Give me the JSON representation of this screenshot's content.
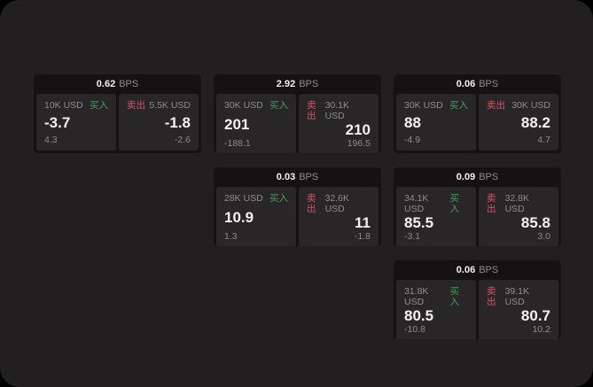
{
  "page": {
    "outer_bg": "#000000",
    "bg": "#211f20"
  },
  "colors": {
    "card_bg": "#141213",
    "panel_bg": "#282627",
    "value": "#f2f2f2",
    "muted": "#8e8c8d",
    "buy": "#41a35e",
    "sell": "#d9536e"
  },
  "labels": {
    "bps": "BPS",
    "buy": "买入",
    "sell": "卖出"
  },
  "cards": [
    {
      "row": 1,
      "col": 1,
      "bps": "0.62",
      "buy_side": {
        "amount": "10K USD",
        "price": "-3.7",
        "delta": "4.3"
      },
      "sell_side": {
        "amount": "5.5K USD",
        "price": "-1.8",
        "delta": "-2.6"
      }
    },
    {
      "row": 1,
      "col": 2,
      "bps": "2.92",
      "buy_side": {
        "amount": "30K USD",
        "price": "201",
        "delta": "-188.1"
      },
      "sell_side": {
        "amount": "30.1K USD",
        "price": "210",
        "delta": "196.5"
      }
    },
    {
      "row": 1,
      "col": 3,
      "bps": "0.06",
      "buy_side": {
        "amount": "30K USD",
        "price": "88",
        "delta": "-4.9"
      },
      "sell_side": {
        "amount": "30K USD",
        "price": "88.2",
        "delta": "4.7"
      }
    },
    {
      "row": 2,
      "col": 2,
      "bps": "0.03",
      "buy_side": {
        "amount": "28K USD",
        "price": "10.9",
        "delta": "1.3"
      },
      "sell_side": {
        "amount": "32.6K USD",
        "price": "11",
        "delta": "-1.8"
      }
    },
    {
      "row": 2,
      "col": 3,
      "bps": "0.09",
      "buy_side": {
        "amount": "34.1K USD",
        "price": "85.5",
        "delta": "-3.1"
      },
      "sell_side": {
        "amount": "32.8K USD",
        "price": "85.8",
        "delta": "3.0"
      }
    },
    {
      "row": 3,
      "col": 3,
      "bps": "0.06",
      "buy_side": {
        "amount": "31.8K USD",
        "price": "80.5",
        "delta": "-10.8"
      },
      "sell_side": {
        "amount": "39.1K USD",
        "price": "80.7",
        "delta": "10.2"
      }
    }
  ]
}
